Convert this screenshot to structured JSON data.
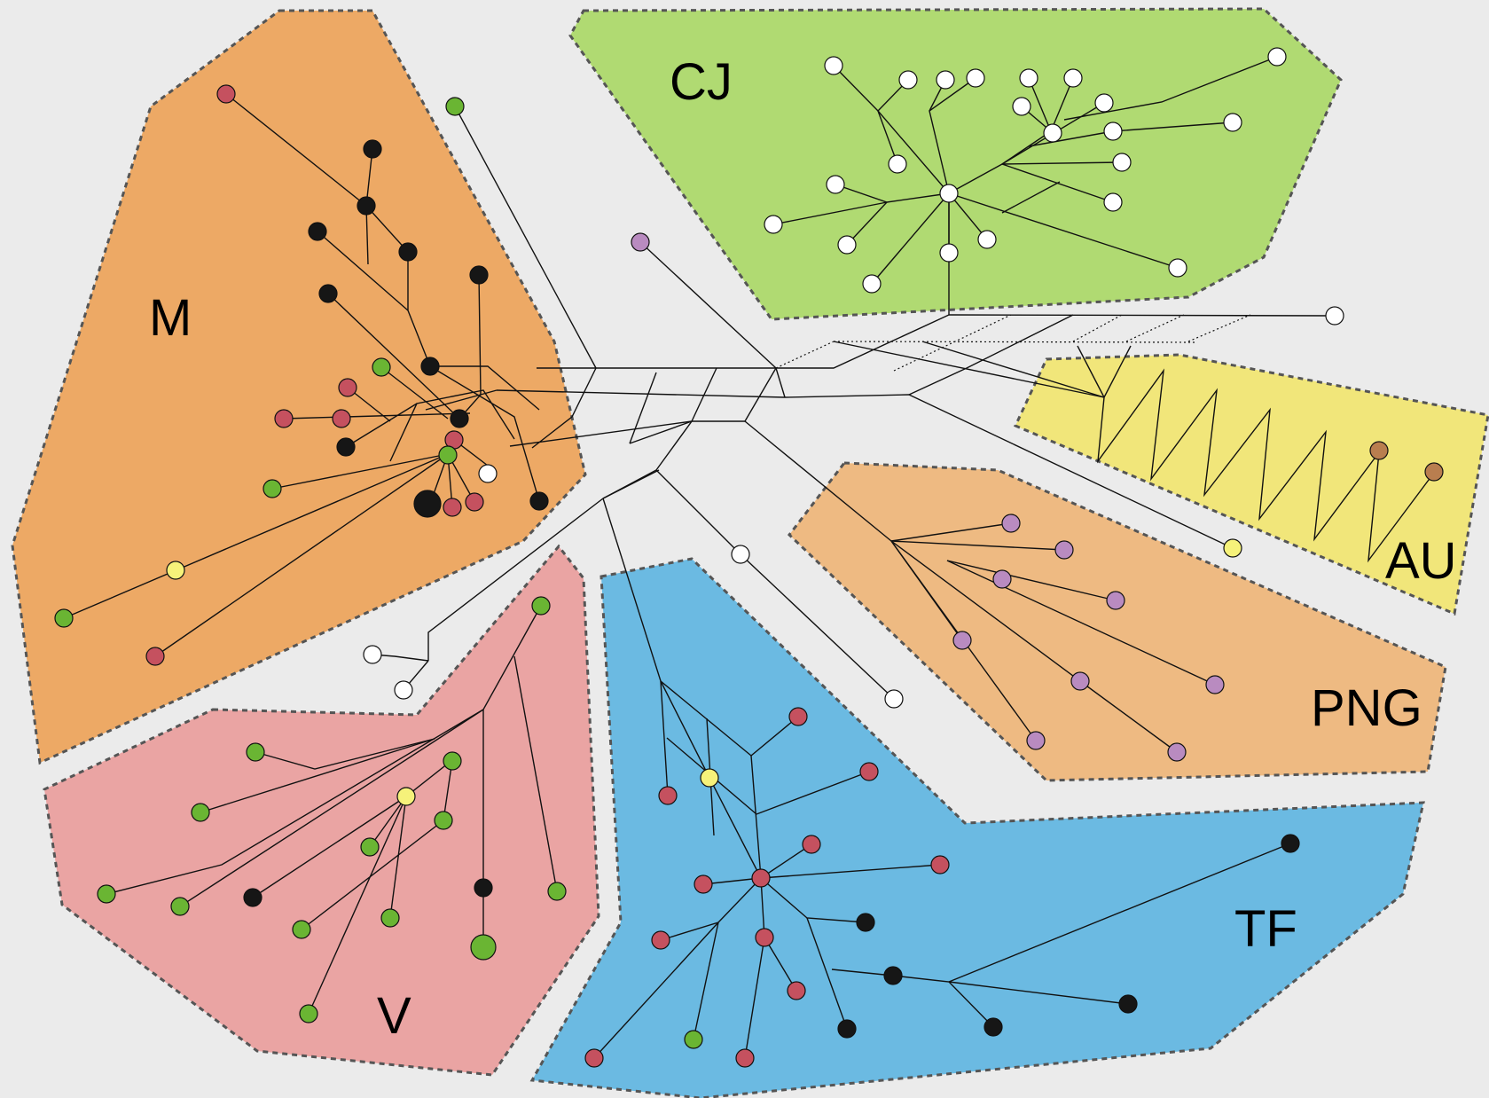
{
  "colors": {
    "background": "#ebebeb",
    "M": "#eda965",
    "CJ": "#b0da72",
    "AU": "#f1e67a",
    "PNG": "#eeba82",
    "V": "#eaa4a3",
    "TF": "#6bbae2",
    "node_black": "#161616",
    "node_white": "#ffffff",
    "node_green": "#6ab533",
    "node_red": "#c5515f",
    "node_yellow": "#f6f27a",
    "node_purple": "#b98bc0",
    "node_brown": "#b97e4f"
  },
  "regions": [
    {
      "id": "M",
      "label": "M"
    },
    {
      "id": "CJ",
      "label": "CJ"
    },
    {
      "id": "AU",
      "label": "AU"
    },
    {
      "id": "PNG",
      "label": "PNG"
    },
    {
      "id": "V",
      "label": "V"
    },
    {
      "id": "TF",
      "label": "TF"
    }
  ]
}
